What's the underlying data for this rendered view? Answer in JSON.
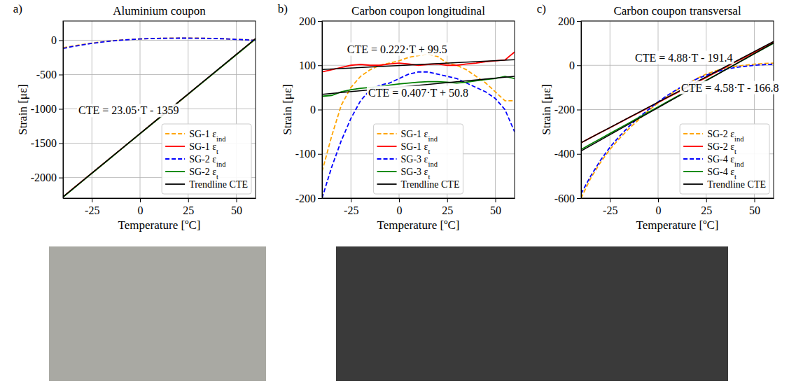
{
  "chart_data": [
    {
      "type": "line",
      "panel_label": "a)",
      "title": "Aluminium coupon",
      "x_label": "Temperature [ºC]",
      "y_label": "Strain [με]",
      "xlim": [
        -40,
        60
      ],
      "xticks": [
        -25,
        0,
        25,
        50
      ],
      "ylim": [
        -2300,
        280
      ],
      "yticks": [
        -2000,
        -1500,
        -1000,
        -500,
        0
      ],
      "grid": true,
      "legend": "lower right",
      "x": [
        -40,
        -35,
        -30,
        -25,
        -20,
        -15,
        -10,
        -5,
        0,
        5,
        10,
        15,
        20,
        25,
        30,
        35,
        40,
        45,
        50,
        55,
        60
      ],
      "series": [
        {
          "name": "SG-1 εind",
          "color": "#ffa500",
          "line_style": "dashed",
          "values": [
            -110,
            -85,
            -62,
            -42,
            -25,
            -10,
            2,
            12,
            20,
            25,
            28,
            30,
            31,
            31,
            30,
            28,
            25,
            20,
            14,
            7,
            0
          ]
        },
        {
          "name": "SG-1 εt",
          "color": "#ff0000",
          "line_style": "solid",
          "values": [
            -2280,
            -2165,
            -2050,
            -1935,
            -1820,
            -1705,
            -1590,
            -1475,
            -1360,
            -1245,
            -1130,
            -1015,
            -900,
            -785,
            -670,
            -555,
            -440,
            -325,
            -210,
            -95,
            20
          ]
        },
        {
          "name": "SG-2 εind",
          "color": "#0000ff",
          "line_style": "dashed",
          "values": [
            -120,
            -92,
            -68,
            -46,
            -28,
            -12,
            0,
            10,
            18,
            24,
            27,
            29,
            30,
            30,
            29,
            27,
            24,
            19,
            12,
            5,
            -2
          ]
        },
        {
          "name": "SG-2 εt",
          "color": "#008000",
          "line_style": "solid",
          "values": [
            -2285,
            -2170,
            -2054,
            -1938,
            -1823,
            -1708,
            -1592,
            -1477,
            -1362,
            -1247,
            -1132,
            -1017,
            -902,
            -787,
            -672,
            -557,
            -442,
            -327,
            -212,
            -97,
            18
          ]
        },
        {
          "name": "Trendline CTE",
          "color": "#000000",
          "line_style": "solid",
          "x": [
            -40,
            60
          ],
          "values": [
            -2281,
            24
          ]
        }
      ],
      "annotations": [
        {
          "text": "CTE = 23.05·T - 1359",
          "x": -32,
          "y": -1080
        }
      ]
    },
    {
      "type": "line",
      "panel_label": "b)",
      "title": "Carbon coupon longitudinal",
      "x_label": "Temperature [ºC]",
      "y_label": "Strain [με]",
      "xlim": [
        -40,
        60
      ],
      "xticks": [
        -25,
        0,
        25,
        50
      ],
      "ylim": [
        -200,
        200
      ],
      "yticks": [
        -200,
        -100,
        0,
        100,
        200
      ],
      "grid": true,
      "legend": "lower center",
      "x": [
        -40,
        -35,
        -30,
        -25,
        -20,
        -15,
        -10,
        -5,
        0,
        5,
        10,
        15,
        20,
        25,
        30,
        35,
        40,
        45,
        50,
        55,
        60
      ],
      "series": [
        {
          "name": "SG-1 εind",
          "color": "#ffa500",
          "line_style": "dashed",
          "values": [
            -140,
            -60,
            10,
            50,
            75,
            90,
            100,
            105,
            110,
            118,
            122,
            125,
            120,
            105,
            100,
            90,
            75,
            60,
            40,
            20,
            20
          ]
        },
        {
          "name": "SG-1 εt",
          "color": "#ff0000",
          "line_style": "solid",
          "values": [
            85,
            90,
            95,
            100,
            102,
            100,
            100,
            103,
            105,
            103,
            100,
            102,
            103,
            100,
            100,
            103,
            105,
            108,
            110,
            112,
            130
          ]
        },
        {
          "name": "SG-3 εind",
          "color": "#0000ff",
          "line_style": "dashed",
          "values": [
            -200,
            -130,
            -70,
            -20,
            20,
            45,
            55,
            60,
            70,
            80,
            85,
            85,
            80,
            75,
            70,
            60,
            50,
            40,
            25,
            0,
            -50
          ]
        },
        {
          "name": "SG-3 εt",
          "color": "#008000",
          "line_style": "solid",
          "values": [
            30,
            32,
            40,
            45,
            48,
            50,
            52,
            55,
            58,
            60,
            62,
            63,
            63,
            62,
            60,
            62,
            65,
            68,
            70,
            75,
            70
          ]
        },
        {
          "name": "Trendline CTE",
          "color": "#000000",
          "line_style": "solid",
          "x": [
            -40,
            60
          ],
          "values": [
            90.6,
            112.8
          ]
        },
        {
          "name": "Trendline CTE",
          "color": "#000000",
          "line_style": "solid",
          "x": [
            -40,
            60
          ],
          "values": [
            34.5,
            75.2
          ]
        }
      ],
      "annotations": [
        {
          "text": "CTE = 0.222·T + 99.5",
          "x": -27,
          "y": 128
        },
        {
          "text": "CTE = 0.407·T + 50.8",
          "x": -16,
          "y": 30
        }
      ]
    },
    {
      "type": "line",
      "panel_label": "c)",
      "title": "Carbon coupon transversal",
      "x_label": "Temperature [ºC]",
      "y_label": "Strain [με]",
      "xlim": [
        -40,
        60
      ],
      "xticks": [
        -25,
        0,
        25,
        50
      ],
      "ylim": [
        -600,
        200
      ],
      "yticks": [
        -600,
        -400,
        -200,
        0,
        200
      ],
      "grid": true,
      "legend": "lower right",
      "x": [
        -40,
        -35,
        -30,
        -25,
        -20,
        -15,
        -10,
        -5,
        0,
        5,
        10,
        15,
        20,
        25,
        30,
        35,
        40,
        45,
        50,
        55,
        60
      ],
      "series": [
        {
          "name": "SG-2 εind",
          "color": "#ffa500",
          "line_style": "dashed",
          "values": [
            -600,
            -510,
            -440,
            -380,
            -330,
            -285,
            -245,
            -205,
            -170,
            -140,
            -110,
            -85,
            -60,
            -40,
            -25,
            -12,
            -5,
            0,
            5,
            8,
            10
          ]
        },
        {
          "name": "SG-2 εt",
          "color": "#ff0000",
          "line_style": "solid",
          "values": [
            -350,
            -327,
            -304,
            -282,
            -259,
            -236,
            -214,
            -191,
            -168,
            -145,
            -123,
            -100,
            -77,
            -55,
            -32,
            -9,
            14,
            36,
            59,
            82,
            105
          ]
        },
        {
          "name": "SG-4 εind",
          "color": "#0000ff",
          "line_style": "dashed",
          "values": [
            -580,
            -500,
            -430,
            -370,
            -320,
            -275,
            -235,
            -200,
            -165,
            -135,
            -108,
            -85,
            -62,
            -45,
            -30,
            -18,
            -10,
            -5,
            0,
            3,
            5
          ]
        },
        {
          "name": "SG-4 εt",
          "color": "#008000",
          "line_style": "solid",
          "values": [
            -380,
            -356,
            -332,
            -308,
            -284,
            -260,
            -236,
            -212,
            -188,
            -164,
            -140,
            -116,
            -92,
            -68,
            -44,
            -20,
            4,
            28,
            52,
            76,
            100
          ]
        },
        {
          "name": "Trendline CTE",
          "color": "#000000",
          "line_style": "solid",
          "x": [
            -40,
            60
          ],
          "values": [
            -386.6,
            101.4
          ]
        },
        {
          "name": "Trendline CTE",
          "color": "#000000",
          "line_style": "solid",
          "x": [
            -40,
            60
          ],
          "values": [
            -350,
            108
          ]
        }
      ],
      "annotations": [
        {
          "text": "CTE = 4.88·T - 191.4",
          "x": -12,
          "y": 18
        },
        {
          "text": "CTE = 4.58·T - 166.8",
          "x": 12,
          "y": -118
        }
      ]
    }
  ]
}
